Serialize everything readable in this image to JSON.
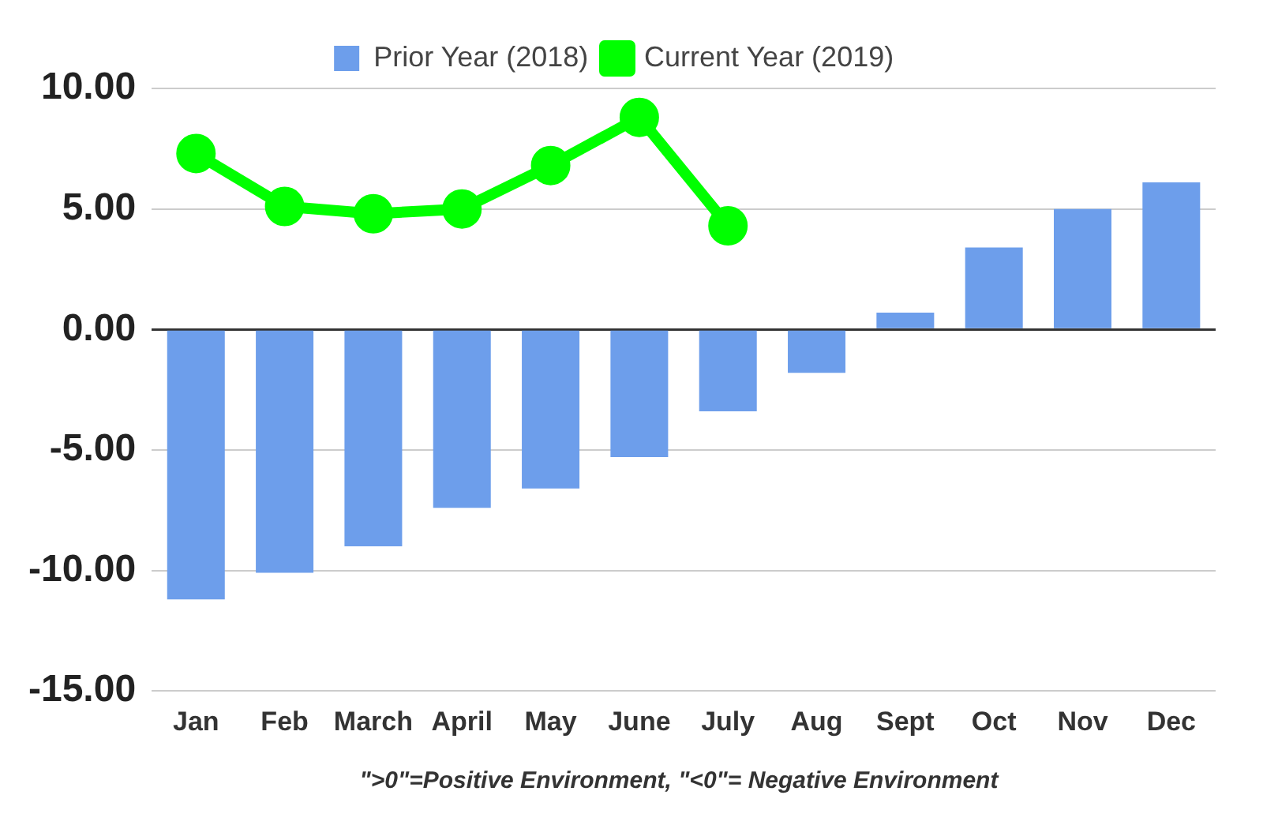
{
  "chart_data": {
    "type": "bar",
    "categories": [
      "Jan",
      "Feb",
      "March",
      "April",
      "May",
      "June",
      "July",
      "Aug",
      "Sept",
      "Oct",
      "Nov",
      "Dec"
    ],
    "series": [
      {
        "name": "Prior Year (2018)",
        "color": "#6d9eeb",
        "values": [
          -11.2,
          -10.1,
          -9.0,
          -7.4,
          -6.6,
          -5.3,
          -3.4,
          -1.8,
          0.7,
          3.4,
          5.0,
          6.1
        ]
      },
      {
        "name": "Current Year (2019)",
        "type": "line",
        "color": "#00ff00",
        "values": [
          7.3,
          5.1,
          4.8,
          5.0,
          6.8,
          8.8,
          4.3,
          null,
          null,
          null,
          null,
          null
        ]
      }
    ],
    "ylim": [
      -15,
      10
    ],
    "yticks": [
      {
        "value": -15,
        "label": "-15.00"
      },
      {
        "value": -10,
        "label": "-10.00"
      },
      {
        "value": -5,
        "label": "-5.00"
      },
      {
        "value": 0,
        "label": "0.00"
      },
      {
        "value": 5,
        "label": "5.00"
      },
      {
        "value": 10,
        "label": "10.00"
      }
    ],
    "grid": "y",
    "legend": "top",
    "marker": "circle",
    "line_style": "solid",
    "annotations": [
      "\">0\"=Positive Environment, \"<0\"= Negative Environment"
    ]
  }
}
